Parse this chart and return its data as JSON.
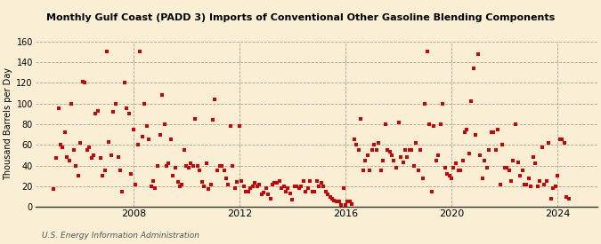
{
  "title": "Monthly Gulf Coast (PADD 3) Imports of Conventional Other Gasoline Blending Components",
  "ylabel": "Thousand Barrels per Day",
  "source": "U.S. Energy Information Administration",
  "background_color": "#faefd4",
  "dot_color": "#cc0000",
  "dot_size": 7,
  "ylim": [
    0,
    160
  ],
  "yticks": [
    0,
    20,
    40,
    60,
    80,
    100,
    120,
    140,
    160
  ],
  "xticks_years": [
    2008,
    2012,
    2016,
    2020,
    2024
  ],
  "xlim": [
    2004.3,
    2025.5
  ],
  "data": [
    [
      2005.0,
      17
    ],
    [
      2005.08,
      47
    ],
    [
      2005.17,
      95
    ],
    [
      2005.25,
      60
    ],
    [
      2005.33,
      58
    ],
    [
      2005.42,
      72
    ],
    [
      2005.5,
      48
    ],
    [
      2005.58,
      45
    ],
    [
      2005.67,
      100
    ],
    [
      2005.75,
      55
    ],
    [
      2005.83,
      40
    ],
    [
      2005.92,
      30
    ],
    [
      2006.0,
      62
    ],
    [
      2006.08,
      121
    ],
    [
      2006.17,
      120
    ],
    [
      2006.25,
      55
    ],
    [
      2006.33,
      58
    ],
    [
      2006.42,
      47
    ],
    [
      2006.5,
      50
    ],
    [
      2006.58,
      90
    ],
    [
      2006.67,
      93
    ],
    [
      2006.75,
      47
    ],
    [
      2006.83,
      30
    ],
    [
      2006.92,
      35
    ],
    [
      2007.0,
      150
    ],
    [
      2007.08,
      63
    ],
    [
      2007.17,
      50
    ],
    [
      2007.25,
      92
    ],
    [
      2007.33,
      100
    ],
    [
      2007.42,
      48
    ],
    [
      2007.5,
      35
    ],
    [
      2007.58,
      15
    ],
    [
      2007.67,
      120
    ],
    [
      2007.75,
      95
    ],
    [
      2007.83,
      90
    ],
    [
      2007.92,
      32
    ],
    [
      2008.0,
      75
    ],
    [
      2008.08,
      22
    ],
    [
      2008.17,
      60
    ],
    [
      2008.25,
      150
    ],
    [
      2008.33,
      68
    ],
    [
      2008.42,
      100
    ],
    [
      2008.5,
      78
    ],
    [
      2008.58,
      65
    ],
    [
      2008.67,
      20
    ],
    [
      2008.75,
      25
    ],
    [
      2008.83,
      18
    ],
    [
      2008.92,
      40
    ],
    [
      2009.0,
      70
    ],
    [
      2009.08,
      108
    ],
    [
      2009.17,
      80
    ],
    [
      2009.25,
      40
    ],
    [
      2009.33,
      42
    ],
    [
      2009.42,
      65
    ],
    [
      2009.5,
      30
    ],
    [
      2009.58,
      38
    ],
    [
      2009.67,
      24
    ],
    [
      2009.75,
      20
    ],
    [
      2009.83,
      22
    ],
    [
      2009.92,
      55
    ],
    [
      2010.0,
      40
    ],
    [
      2010.08,
      38
    ],
    [
      2010.17,
      42
    ],
    [
      2010.25,
      40
    ],
    [
      2010.33,
      85
    ],
    [
      2010.42,
      40
    ],
    [
      2010.5,
      35
    ],
    [
      2010.58,
      24
    ],
    [
      2010.67,
      20
    ],
    [
      2010.75,
      42
    ],
    [
      2010.83,
      17
    ],
    [
      2010.92,
      22
    ],
    [
      2011.0,
      84
    ],
    [
      2011.08,
      104
    ],
    [
      2011.17,
      35
    ],
    [
      2011.25,
      40
    ],
    [
      2011.33,
      40
    ],
    [
      2011.42,
      35
    ],
    [
      2011.5,
      28
    ],
    [
      2011.58,
      22
    ],
    [
      2011.67,
      78
    ],
    [
      2011.75,
      40
    ],
    [
      2011.83,
      18
    ],
    [
      2011.92,
      24
    ],
    [
      2012.0,
      78
    ],
    [
      2012.08,
      25
    ],
    [
      2012.17,
      20
    ],
    [
      2012.25,
      15
    ],
    [
      2012.33,
      15
    ],
    [
      2012.42,
      18
    ],
    [
      2012.5,
      20
    ],
    [
      2012.58,
      23
    ],
    [
      2012.67,
      20
    ],
    [
      2012.75,
      22
    ],
    [
      2012.83,
      12
    ],
    [
      2012.92,
      14
    ],
    [
      2013.0,
      18
    ],
    [
      2013.08,
      12
    ],
    [
      2013.17,
      8
    ],
    [
      2013.25,
      22
    ],
    [
      2013.33,
      23
    ],
    [
      2013.42,
      23
    ],
    [
      2013.5,
      25
    ],
    [
      2013.58,
      18
    ],
    [
      2013.67,
      20
    ],
    [
      2013.75,
      15
    ],
    [
      2013.83,
      18
    ],
    [
      2013.92,
      13
    ],
    [
      2014.0,
      7
    ],
    [
      2014.08,
      20
    ],
    [
      2014.17,
      20
    ],
    [
      2014.25,
      18
    ],
    [
      2014.33,
      20
    ],
    [
      2014.42,
      25
    ],
    [
      2014.5,
      15
    ],
    [
      2014.58,
      18
    ],
    [
      2014.67,
      25
    ],
    [
      2014.75,
      15
    ],
    [
      2014.83,
      15
    ],
    [
      2014.92,
      25
    ],
    [
      2015.0,
      20
    ],
    [
      2015.08,
      23
    ],
    [
      2015.17,
      20
    ],
    [
      2015.25,
      15
    ],
    [
      2015.33,
      12
    ],
    [
      2015.42,
      10
    ],
    [
      2015.5,
      8
    ],
    [
      2015.58,
      6
    ],
    [
      2015.67,
      5
    ],
    [
      2015.75,
      5
    ],
    [
      2015.83,
      2
    ],
    [
      2015.92,
      18
    ],
    [
      2016.0,
      2
    ],
    [
      2016.08,
      5
    ],
    [
      2016.17,
      5
    ],
    [
      2016.25,
      3
    ],
    [
      2016.33,
      65
    ],
    [
      2016.42,
      60
    ],
    [
      2016.5,
      55
    ],
    [
      2016.58,
      85
    ],
    [
      2016.67,
      35
    ],
    [
      2016.75,
      45
    ],
    [
      2016.83,
      50
    ],
    [
      2016.92,
      35
    ],
    [
      2017.0,
      55
    ],
    [
      2017.08,
      60
    ],
    [
      2017.17,
      55
    ],
    [
      2017.25,
      62
    ],
    [
      2017.33,
      35
    ],
    [
      2017.42,
      45
    ],
    [
      2017.5,
      80
    ],
    [
      2017.58,
      55
    ],
    [
      2017.67,
      53
    ],
    [
      2017.75,
      50
    ],
    [
      2017.83,
      45
    ],
    [
      2017.92,
      38
    ],
    [
      2018.0,
      82
    ],
    [
      2018.08,
      48
    ],
    [
      2018.17,
      43
    ],
    [
      2018.25,
      55
    ],
    [
      2018.33,
      48
    ],
    [
      2018.42,
      55
    ],
    [
      2018.5,
      55
    ],
    [
      2018.58,
      40
    ],
    [
      2018.67,
      62
    ],
    [
      2018.75,
      35
    ],
    [
      2018.83,
      55
    ],
    [
      2018.92,
      28
    ],
    [
      2019.0,
      100
    ],
    [
      2019.08,
      150
    ],
    [
      2019.17,
      80
    ],
    [
      2019.25,
      15
    ],
    [
      2019.33,
      78
    ],
    [
      2019.42,
      45
    ],
    [
      2019.5,
      50
    ],
    [
      2019.58,
      80
    ],
    [
      2019.67,
      100
    ],
    [
      2019.75,
      38
    ],
    [
      2019.83,
      32
    ],
    [
      2019.92,
      30
    ],
    [
      2020.0,
      28
    ],
    [
      2020.08,
      38
    ],
    [
      2020.17,
      42
    ],
    [
      2020.25,
      35
    ],
    [
      2020.33,
      35
    ],
    [
      2020.42,
      45
    ],
    [
      2020.5,
      72
    ],
    [
      2020.58,
      75
    ],
    [
      2020.67,
      52
    ],
    [
      2020.75,
      102
    ],
    [
      2020.83,
      134
    ],
    [
      2020.92,
      70
    ],
    [
      2021.0,
      148
    ],
    [
      2021.08,
      50
    ],
    [
      2021.17,
      28
    ],
    [
      2021.25,
      45
    ],
    [
      2021.33,
      38
    ],
    [
      2021.42,
      55
    ],
    [
      2021.5,
      72
    ],
    [
      2021.58,
      72
    ],
    [
      2021.67,
      55
    ],
    [
      2021.75,
      75
    ],
    [
      2021.83,
      22
    ],
    [
      2021.92,
      60
    ],
    [
      2022.0,
      38
    ],
    [
      2022.08,
      38
    ],
    [
      2022.17,
      35
    ],
    [
      2022.25,
      25
    ],
    [
      2022.33,
      45
    ],
    [
      2022.42,
      80
    ],
    [
      2022.5,
      43
    ],
    [
      2022.58,
      30
    ],
    [
      2022.67,
      35
    ],
    [
      2022.75,
      22
    ],
    [
      2022.83,
      22
    ],
    [
      2022.92,
      28
    ],
    [
      2023.0,
      20
    ],
    [
      2023.08,
      48
    ],
    [
      2023.17,
      42
    ],
    [
      2023.25,
      20
    ],
    [
      2023.33,
      25
    ],
    [
      2023.42,
      58
    ],
    [
      2023.5,
      22
    ],
    [
      2023.58,
      25
    ],
    [
      2023.67,
      62
    ],
    [
      2023.75,
      8
    ],
    [
      2023.83,
      18
    ],
    [
      2023.92,
      20
    ],
    [
      2024.0,
      30
    ],
    [
      2024.08,
      65
    ],
    [
      2024.17,
      65
    ],
    [
      2024.25,
      62
    ],
    [
      2024.33,
      10
    ],
    [
      2024.42,
      8
    ]
  ]
}
